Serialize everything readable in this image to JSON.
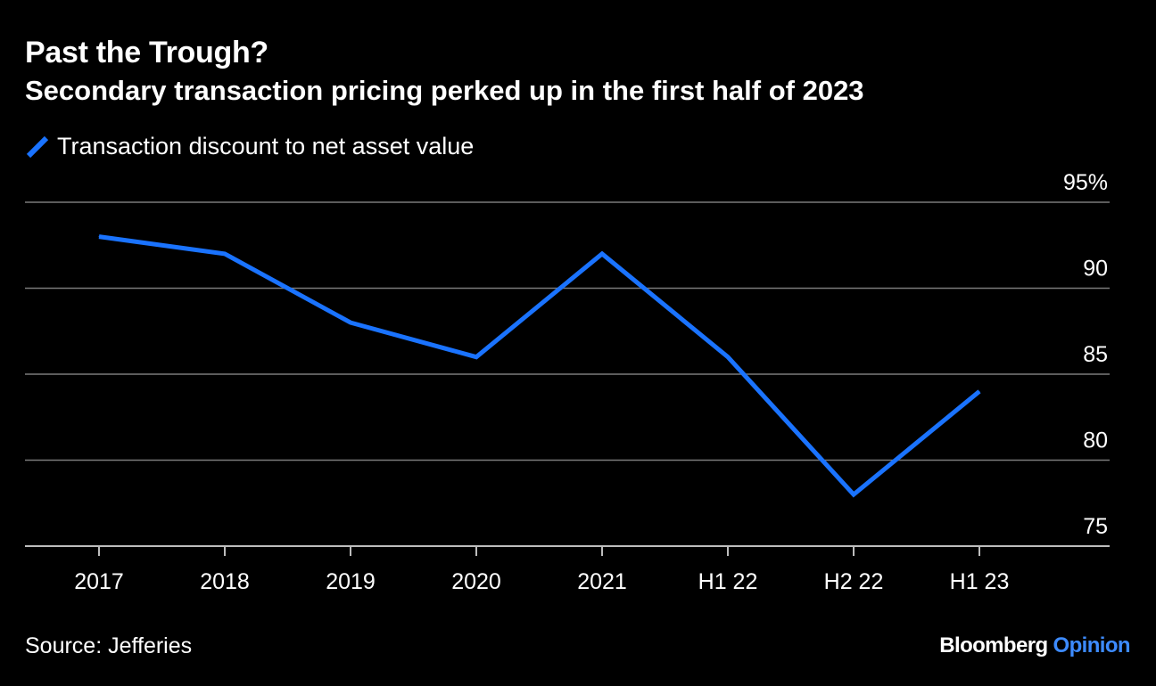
{
  "header": {
    "title": "Past the Trough?",
    "subtitle": "Secondary transaction pricing perked up in the first half of 2023"
  },
  "footer": {
    "source": "Source: Jefferies",
    "brand_primary": "Bloomberg",
    "brand_secondary": "Opinion"
  },
  "colors": {
    "background": "#000000",
    "series": "#1a73ff",
    "grid": "#7a7a7a",
    "text": "#ffffff",
    "brand_accent": "#3d8bff"
  },
  "chart_data": {
    "type": "line",
    "title": "Past the Trough?",
    "subtitle": "Secondary transaction pricing perked up in the first half of 2023",
    "categories": [
      "2017",
      "2018",
      "2019",
      "2020",
      "2021",
      "H1 22",
      "H2 22",
      "H1 23"
    ],
    "series": [
      {
        "name": "Transaction discount to net asset value",
        "values": [
          93,
          92,
          88,
          86,
          92,
          86,
          78,
          84
        ]
      }
    ],
    "y_ticks": [
      75,
      80,
      85,
      90,
      95
    ],
    "y_tick_labels": [
      "75",
      "80",
      "85",
      "90",
      "95%"
    ],
    "ylim": [
      75,
      95
    ],
    "y_axis_position": "right",
    "grid": true,
    "legend_position": "top-left",
    "xlabel": "",
    "ylabel": ""
  }
}
